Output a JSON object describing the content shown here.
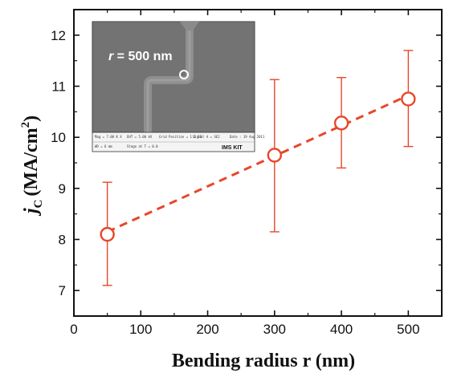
{
  "chart_data": {
    "type": "scatter",
    "xlabel": "Bending radius r (nm)",
    "ylabel": {
      "main": "j",
      "sub": "C",
      "unit": "(MA/cm",
      "sup": "2",
      "close": ")"
    },
    "xlim": [
      0,
      550
    ],
    "ylim": [
      6.5,
      12.5
    ],
    "xticks": [
      "0",
      "100",
      "200",
      "300",
      "400",
      "500"
    ],
    "yticks": [
      "7",
      "8",
      "9",
      "10",
      "11",
      "12"
    ],
    "series": [
      {
        "x": [
          50,
          300,
          400,
          500
        ],
        "y": [
          8.1,
          9.65,
          10.28,
          10.75
        ],
        "err_low": [
          7.1,
          8.15,
          9.4,
          9.82
        ],
        "err_high": [
          9.12,
          11.13,
          11.17,
          11.7
        ],
        "color": "#e8462a"
      }
    ],
    "trend_line": {
      "style": "dashed",
      "x": [
        50,
        500
      ],
      "y": [
        8.15,
        10.82
      ],
      "color": "#e8462a"
    },
    "grid": false,
    "legend": "none",
    "inset": {
      "description": "SEM micrograph",
      "label_var": "r",
      "label_rest": " = 500 nm",
      "logo": "IMS KIT",
      "strip_lines": [
        "Mag = 7.00 K X",
        "EHT = 5.00 kV",
        "Grid Position = 1.1 SE",
        "Signal A = SE2",
        "Date : 19 Aug 2011",
        "WD = 6 mm",
        "Stage at T = 0.0"
      ]
    }
  }
}
